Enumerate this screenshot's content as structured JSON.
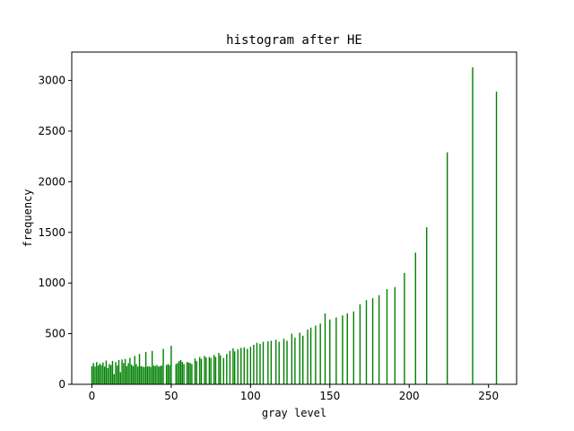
{
  "chart_data": {
    "type": "bar",
    "title": "histogram after HE",
    "xlabel": "gray level",
    "ylabel": "frequency",
    "xlim": [
      -12.7,
      267.7
    ],
    "ylim": [
      0,
      3280
    ],
    "xticks": [
      0,
      50,
      100,
      150,
      200,
      250
    ],
    "yticks": [
      0,
      500,
      1000,
      1500,
      2000,
      2500,
      3000
    ],
    "grid": false,
    "bar_color": "#008000",
    "bars": [
      {
        "x": 0,
        "y": 180
      },
      {
        "x": 1,
        "y": 210
      },
      {
        "x": 2,
        "y": 175
      },
      {
        "x": 3,
        "y": 220
      },
      {
        "x": 4,
        "y": 185
      },
      {
        "x": 5,
        "y": 205
      },
      {
        "x": 6,
        "y": 190
      },
      {
        "x": 7,
        "y": 215
      },
      {
        "x": 8,
        "y": 175
      },
      {
        "x": 9,
        "y": 235
      },
      {
        "x": 10,
        "y": 160
      },
      {
        "x": 11,
        "y": 200
      },
      {
        "x": 12,
        "y": 190
      },
      {
        "x": 13,
        "y": 230
      },
      {
        "x": 14,
        "y": 100
      },
      {
        "x": 15,
        "y": 220
      },
      {
        "x": 16,
        "y": 185
      },
      {
        "x": 17,
        "y": 240
      },
      {
        "x": 18,
        "y": 120
      },
      {
        "x": 19,
        "y": 245
      },
      {
        "x": 20,
        "y": 210
      },
      {
        "x": 21,
        "y": 250
      },
      {
        "x": 22,
        "y": 180
      },
      {
        "x": 23,
        "y": 210
      },
      {
        "x": 24,
        "y": 260
      },
      {
        "x": 25,
        "y": 195
      },
      {
        "x": 26,
        "y": 180
      },
      {
        "x": 27,
        "y": 280
      },
      {
        "x": 28,
        "y": 200
      },
      {
        "x": 29,
        "y": 175
      },
      {
        "x": 30,
        "y": 300
      },
      {
        "x": 31,
        "y": 180
      },
      {
        "x": 32,
        "y": 175
      },
      {
        "x": 33,
        "y": 170
      },
      {
        "x": 34,
        "y": 320
      },
      {
        "x": 35,
        "y": 175
      },
      {
        "x": 36,
        "y": 180
      },
      {
        "x": 37,
        "y": 170
      },
      {
        "x": 38,
        "y": 330
      },
      {
        "x": 39,
        "y": 185
      },
      {
        "x": 40,
        "y": 180
      },
      {
        "x": 41,
        "y": 190
      },
      {
        "x": 42,
        "y": 175
      },
      {
        "x": 43,
        "y": 180
      },
      {
        "x": 44,
        "y": 185
      },
      {
        "x": 45,
        "y": 350
      },
      {
        "x": 47,
        "y": 190
      },
      {
        "x": 48,
        "y": 200
      },
      {
        "x": 49,
        "y": 190
      },
      {
        "x": 50,
        "y": 380
      },
      {
        "x": 53,
        "y": 200
      },
      {
        "x": 54,
        "y": 210
      },
      {
        "x": 55,
        "y": 230
      },
      {
        "x": 56,
        "y": 240
      },
      {
        "x": 57,
        "y": 220
      },
      {
        "x": 58,
        "y": 200
      },
      {
        "x": 60,
        "y": 220
      },
      {
        "x": 61,
        "y": 215
      },
      {
        "x": 62,
        "y": 210
      },
      {
        "x": 63,
        "y": 200
      },
      {
        "x": 65,
        "y": 255
      },
      {
        "x": 66,
        "y": 230
      },
      {
        "x": 68,
        "y": 270
      },
      {
        "x": 69,
        "y": 250
      },
      {
        "x": 71,
        "y": 280
      },
      {
        "x": 72,
        "y": 265
      },
      {
        "x": 74,
        "y": 270
      },
      {
        "x": 75,
        "y": 260
      },
      {
        "x": 77,
        "y": 290
      },
      {
        "x": 78,
        "y": 270
      },
      {
        "x": 80,
        "y": 310
      },
      {
        "x": 81,
        "y": 285
      },
      {
        "x": 83,
        "y": 260
      },
      {
        "x": 85,
        "y": 300
      },
      {
        "x": 87,
        "y": 330
      },
      {
        "x": 89,
        "y": 355
      },
      {
        "x": 90,
        "y": 325
      },
      {
        "x": 92,
        "y": 345
      },
      {
        "x": 94,
        "y": 360
      },
      {
        "x": 96,
        "y": 365
      },
      {
        "x": 98,
        "y": 350
      },
      {
        "x": 100,
        "y": 370
      },
      {
        "x": 102,
        "y": 390
      },
      {
        "x": 104,
        "y": 410
      },
      {
        "x": 106,
        "y": 400
      },
      {
        "x": 108,
        "y": 420
      },
      {
        "x": 111,
        "y": 425
      },
      {
        "x": 113,
        "y": 430
      },
      {
        "x": 116,
        "y": 440
      },
      {
        "x": 118,
        "y": 420
      },
      {
        "x": 121,
        "y": 450
      },
      {
        "x": 123,
        "y": 430
      },
      {
        "x": 126,
        "y": 500
      },
      {
        "x": 128,
        "y": 460
      },
      {
        "x": 131,
        "y": 510
      },
      {
        "x": 133,
        "y": 480
      },
      {
        "x": 136,
        "y": 540
      },
      {
        "x": 138,
        "y": 560
      },
      {
        "x": 141,
        "y": 580
      },
      {
        "x": 144,
        "y": 600
      },
      {
        "x": 147,
        "y": 700
      },
      {
        "x": 150,
        "y": 640
      },
      {
        "x": 154,
        "y": 660
      },
      {
        "x": 158,
        "y": 680
      },
      {
        "x": 161,
        "y": 700
      },
      {
        "x": 165,
        "y": 720
      },
      {
        "x": 169,
        "y": 790
      },
      {
        "x": 173,
        "y": 830
      },
      {
        "x": 177,
        "y": 850
      },
      {
        "x": 181,
        "y": 880
      },
      {
        "x": 186,
        "y": 940
      },
      {
        "x": 191,
        "y": 960
      },
      {
        "x": 197,
        "y": 1100
      },
      {
        "x": 204,
        "y": 1300
      },
      {
        "x": 211,
        "y": 1550
      },
      {
        "x": 224,
        "y": 2290
      },
      {
        "x": 240,
        "y": 3130
      },
      {
        "x": 255,
        "y": 2890
      }
    ]
  }
}
